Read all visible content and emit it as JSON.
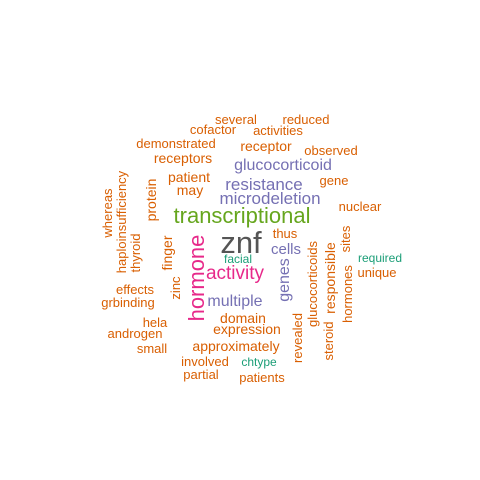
{
  "colors": {
    "orange": "#D95F02",
    "purple": "#7570B3",
    "magenta": "#E7298A",
    "green": "#66A61E",
    "teal": "#1B9E77",
    "dark": "#555555"
  },
  "words": [
    {
      "text": "znf",
      "color": "dark"
    },
    {
      "text": "transcriptional",
      "color": "green"
    },
    {
      "text": "hormone",
      "color": "magenta"
    },
    {
      "text": "activity",
      "color": "magenta"
    },
    {
      "text": "microdeletion",
      "color": "purple"
    },
    {
      "text": "resistance",
      "color": "purple"
    },
    {
      "text": "glucocorticoid",
      "color": "purple"
    },
    {
      "text": "genes",
      "color": "purple"
    },
    {
      "text": "multiple",
      "color": "purple"
    },
    {
      "text": "cells",
      "color": "purple"
    },
    {
      "text": "receptor",
      "color": "orange"
    },
    {
      "text": "receptors",
      "color": "orange"
    },
    {
      "text": "patient",
      "color": "orange"
    },
    {
      "text": "may",
      "color": "orange"
    },
    {
      "text": "protein",
      "color": "orange"
    },
    {
      "text": "finger",
      "color": "orange"
    },
    {
      "text": "domain",
      "color": "orange"
    },
    {
      "text": "expression",
      "color": "orange"
    },
    {
      "text": "approximately",
      "color": "orange"
    },
    {
      "text": "responsible",
      "color": "orange"
    },
    {
      "text": "glucocorticoids",
      "color": "orange"
    },
    {
      "text": "thus",
      "color": "orange"
    },
    {
      "text": "nuclear",
      "color": "orange"
    },
    {
      "text": "observed",
      "color": "orange"
    },
    {
      "text": "gene",
      "color": "orange"
    },
    {
      "text": "several",
      "color": "orange"
    },
    {
      "text": "reduced",
      "color": "orange"
    },
    {
      "text": "cofactor",
      "color": "orange"
    },
    {
      "text": "activities",
      "color": "orange"
    },
    {
      "text": "demonstrated",
      "color": "orange"
    },
    {
      "text": "thyroid",
      "color": "orange"
    },
    {
      "text": "haploinsufficiency",
      "color": "orange"
    },
    {
      "text": "whereas",
      "color": "orange"
    },
    {
      "text": "effects",
      "color": "orange"
    },
    {
      "text": "grbinding",
      "color": "orange"
    },
    {
      "text": "androgen",
      "color": "orange"
    },
    {
      "text": "hela",
      "color": "orange"
    },
    {
      "text": "small",
      "color": "orange"
    },
    {
      "text": "zinc",
      "color": "orange"
    },
    {
      "text": "involved",
      "color": "orange"
    },
    {
      "text": "partial",
      "color": "orange"
    },
    {
      "text": "patients",
      "color": "orange"
    },
    {
      "text": "revealed",
      "color": "orange"
    },
    {
      "text": "steroid",
      "color": "orange"
    },
    {
      "text": "hormones",
      "color": "orange"
    },
    {
      "text": "sites",
      "color": "orange"
    },
    {
      "text": "unique",
      "color": "orange"
    },
    {
      "text": "facial",
      "color": "teal"
    },
    {
      "text": "required",
      "color": "teal"
    },
    {
      "text": "chtype",
      "color": "teal"
    }
  ]
}
